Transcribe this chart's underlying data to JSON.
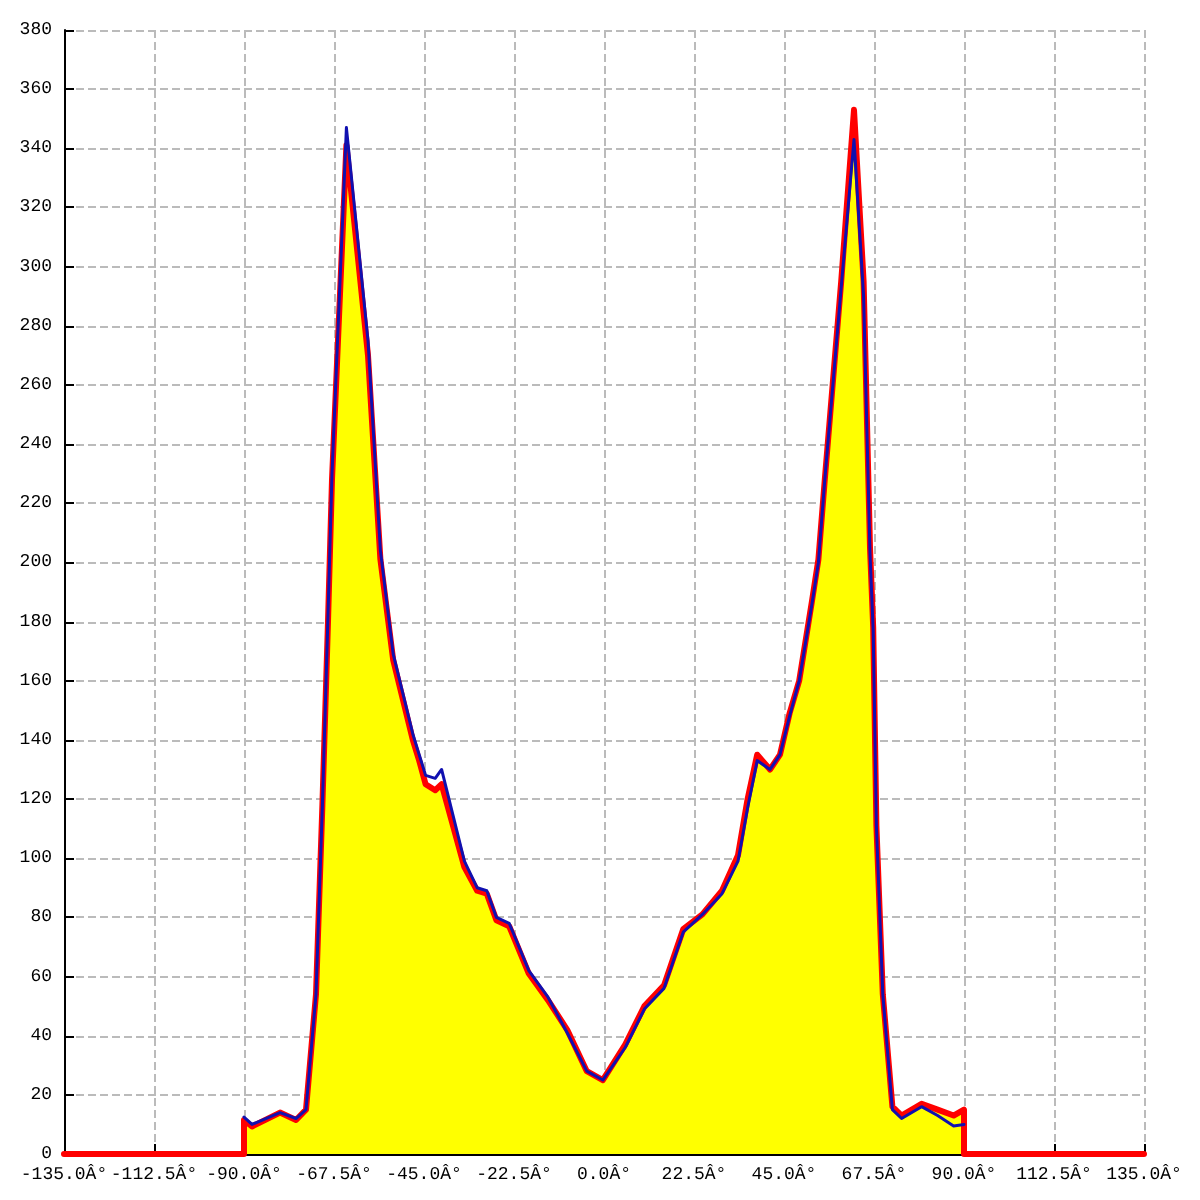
{
  "chart_data": {
    "type": "line",
    "series": [
      {
        "type": "area",
        "color": "#ffff00",
        "x": [
          -90,
          -90,
          -88,
          -81,
          -77,
          -74.5,
          -72,
          -70.4,
          -69,
          -68,
          -64.4,
          -59,
          -55.9,
          -52.7,
          -47.8,
          -46.2,
          -44.6,
          -42.2,
          -40.6,
          -34.9,
          -31.7,
          -29.3,
          -26.9,
          -23.7,
          -18.8,
          -14,
          -9.2,
          -4.3,
          -0.3,
          5.3,
          10.1,
          15,
          19.8,
          24.6,
          29.5,
          33.5,
          35.9,
          38.3,
          41.5,
          44,
          46.4,
          48.8,
          52,
          53.6,
          55.2,
          59.3,
          62.5,
          64.9,
          66.5,
          67.3,
          68.1,
          69.7,
          72.1,
          74.4,
          79.4,
          83.4,
          87.4,
          90,
          90
        ],
        "values": [
          0,
          11.5,
          9.3,
          14,
          11.5,
          15,
          54,
          118,
          180,
          228,
          341,
          270,
          201,
          167,
          140,
          133,
          125,
          123,
          125,
          97,
          89,
          88,
          79,
          77,
          61,
          52,
          42,
          28,
          25,
          37,
          50,
          57,
          76,
          81,
          89,
          101,
          120,
          135,
          130,
          135,
          149,
          160,
          187,
          201,
          228,
          295,
          353,
          295,
          205,
          178,
          111,
          54,
          16,
          13,
          17,
          15,
          13,
          15,
          0
        ]
      },
      {
        "type": "line",
        "color": "#ff0000",
        "x": [
          -135,
          -90,
          -90,
          -88,
          -81,
          -77,
          -74.5,
          -72,
          -70.4,
          -69,
          -68,
          -64.4,
          -59,
          -55.9,
          -52.7,
          -47.8,
          -46.2,
          -44.6,
          -42.2,
          -40.6,
          -34.9,
          -31.7,
          -29.3,
          -26.9,
          -23.7,
          -18.8,
          -14,
          -9.2,
          -4.3,
          -0.3,
          5.3,
          10.1,
          15,
          19.8,
          24.6,
          29.5,
          33.5,
          35.9,
          38.3,
          41.5,
          44,
          46.4,
          48.8,
          52,
          53.6,
          55.2,
          59.3,
          62.5,
          64.9,
          66.5,
          67.3,
          68.1,
          69.7,
          72.1,
          74.4,
          79.4,
          83.4,
          87.4,
          90,
          90,
          135
        ],
        "values": [
          0,
          0,
          11.5,
          9.3,
          14,
          11.5,
          15,
          54,
          118,
          180,
          228,
          341,
          270,
          201,
          167,
          140,
          133,
          125,
          123,
          125,
          97,
          89,
          88,
          79,
          77,
          61,
          52,
          42,
          28,
          25,
          37,
          50,
          57,
          76,
          81,
          89,
          101,
          120,
          135,
          130,
          135,
          149,
          160,
          187,
          201,
          228,
          295,
          353,
          295,
          205,
          178,
          111,
          54,
          16,
          13,
          17,
          15,
          13,
          15,
          0,
          0
        ]
      },
      {
        "color": "#1010b0",
        "x": [
          -90,
          -88,
          -81,
          -77,
          -74.5,
          -72,
          -70.4,
          -69,
          -68,
          -64.4,
          -59,
          -55.9,
          -52.7,
          -47.8,
          -46.2,
          -44.6,
          -42.2,
          -40.6,
          -34.9,
          -31.7,
          -29.3,
          -26.9,
          -23.7,
          -18.8,
          -14,
          -9.2,
          -4.3,
          -0.3,
          5.3,
          10.1,
          15,
          19.8,
          24.6,
          29.5,
          33.5,
          35.9,
          38.3,
          41.5,
          44,
          46.4,
          48.8,
          52,
          53.6,
          55.2,
          59.3,
          62.5,
          64.9,
          66.5,
          67.3,
          68.1,
          69.7,
          72.1,
          74.4,
          79.4,
          83.4,
          87.4,
          90
        ],
        "values": [
          12.5,
          10,
          14,
          12,
          15,
          54,
          118,
          182,
          230,
          347,
          275,
          204,
          169,
          142,
          135,
          128,
          127,
          130,
          99,
          90,
          89,
          80,
          78,
          62,
          53,
          41,
          28,
          25,
          36,
          49,
          56,
          75,
          81,
          88,
          99,
          117,
          133,
          130,
          135,
          148,
          160,
          186,
          200,
          228,
          293,
          343,
          290,
          203,
          177,
          111,
          54,
          15,
          12,
          16,
          13,
          9.5,
          10
        ]
      }
    ],
    "xlim": [
      -135,
      135
    ],
    "xticks": [
      {
        "value": -135,
        "label": "-135.0Â°"
      },
      {
        "value": -112.5,
        "label": "-112.5Â°"
      },
      {
        "value": -90,
        "label": "-90.0Â°"
      },
      {
        "value": -67.5,
        "label": "-67.5Â°"
      },
      {
        "value": -45,
        "label": "-45.0Â°"
      },
      {
        "value": -22.5,
        "label": "-22.5Â°"
      },
      {
        "value": 0,
        "label": "0.0Â°"
      },
      {
        "value": 22.5,
        "label": "22.5Â°"
      },
      {
        "value": 45,
        "label": "45.0Â°"
      },
      {
        "value": 67.5,
        "label": "67.5Â°"
      },
      {
        "value": 90,
        "label": "90.0Â°"
      },
      {
        "value": 112.5,
        "label": "112.5Â°"
      },
      {
        "value": 135,
        "label": "135.0Â°"
      }
    ],
    "ylim": [
      0,
      380
    ],
    "yticks": [
      0,
      20,
      40,
      60,
      80,
      100,
      120,
      140,
      160,
      180,
      200,
      220,
      240,
      260,
      280,
      300,
      320,
      340,
      360,
      380
    ],
    "grid": true,
    "marker": "none",
    "line_style": "solid"
  }
}
